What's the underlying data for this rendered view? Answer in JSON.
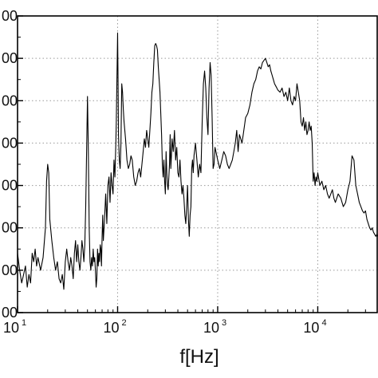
{
  "chart_data": {
    "type": "line",
    "xlabel": "f[Hz]",
    "xscale": "log",
    "xlim": [
      10,
      40000
    ],
    "ylim": [
      0,
      7
    ],
    "grid": true,
    "x_ticks": [
      {
        "value": 10,
        "base": "10",
        "exp": "1"
      },
      {
        "value": 100,
        "base": "10",
        "exp": "2"
      },
      {
        "value": 1000,
        "base": "10",
        "exp": "3"
      },
      {
        "value": 10000,
        "base": "10",
        "exp": "4"
      }
    ],
    "y_ticks": [
      {
        "value": 0,
        "label": "00"
      },
      {
        "value": 1,
        "label": "00"
      },
      {
        "value": 2,
        "label": "00"
      },
      {
        "value": 3,
        "label": "00"
      },
      {
        "value": 4,
        "label": "00"
      },
      {
        "value": 5,
        "label": "00"
      },
      {
        "value": 6,
        "label": "00"
      },
      {
        "value": 7,
        "label": "00"
      }
    ],
    "series": [
      {
        "color": "#000000",
        "points": [
          [
            10,
            1.4
          ],
          [
            10.5,
            1.0
          ],
          [
            11,
            0.7
          ],
          [
            11.5,
            0.9
          ],
          [
            12,
            1.1
          ],
          [
            12.5,
            0.6
          ],
          [
            13,
            0.9
          ],
          [
            13.5,
            0.7
          ],
          [
            14,
            1.4
          ],
          [
            14.5,
            1.2
          ],
          [
            15,
            1.5
          ],
          [
            15.5,
            1.1
          ],
          [
            16,
            1.3
          ],
          [
            17,
            1.0
          ],
          [
            18,
            1.3
          ],
          [
            19,
            2.0
          ],
          [
            19.5,
            3.1
          ],
          [
            20,
            3.5
          ],
          [
            20.5,
            3.3
          ],
          [
            21,
            2.2
          ],
          [
            22,
            1.7
          ],
          [
            23,
            1.3
          ],
          [
            24,
            1.0
          ],
          [
            25,
            1.2
          ],
          [
            26,
            0.8
          ],
          [
            27,
            0.7
          ],
          [
            28,
            0.9
          ],
          [
            29,
            0.55
          ],
          [
            30,
            1.2
          ],
          [
            31,
            1.5
          ],
          [
            32,
            1.2
          ],
          [
            33,
            1.0
          ],
          [
            34,
            1.3
          ],
          [
            35,
            1.1
          ],
          [
            36,
            0.8
          ],
          [
            37,
            1.4
          ],
          [
            38,
            1.7
          ],
          [
            39,
            1.2
          ],
          [
            40,
            1.6
          ],
          [
            41,
            1.2
          ],
          [
            42,
            1.0
          ],
          [
            43,
            1.3
          ],
          [
            44,
            1.7
          ],
          [
            45,
            1.5
          ],
          [
            46,
            1.2
          ],
          [
            47,
            1.6
          ],
          [
            48,
            2.5
          ],
          [
            49,
            3.8
          ],
          [
            50,
            5.1
          ],
          [
            51,
            3.8
          ],
          [
            52,
            2.0
          ],
          [
            53,
            1.2
          ],
          [
            54,
            1.0
          ],
          [
            55,
            1.3
          ],
          [
            56,
            1.1
          ],
          [
            57,
            1.5
          ],
          [
            58,
            1.2
          ],
          [
            59,
            1.3
          ],
          [
            60,
            1.0
          ],
          [
            61,
            0.6
          ],
          [
            62,
            0.8
          ],
          [
            63,
            1.5
          ],
          [
            64,
            1.1
          ],
          [
            65,
            1.4
          ],
          [
            66,
            1.2
          ],
          [
            67,
            1.6
          ],
          [
            68,
            1.5
          ],
          [
            69,
            1.1
          ],
          [
            70,
            1.8
          ],
          [
            71,
            2.3
          ],
          [
            72,
            1.7
          ],
          [
            74,
            2.2
          ],
          [
            76,
            2.8
          ],
          [
            78,
            2.1
          ],
          [
            80,
            3.0
          ],
          [
            82,
            3.2
          ],
          [
            84,
            2.6
          ],
          [
            86,
            3.3
          ],
          [
            88,
            3.0
          ],
          [
            90,
            2.8
          ],
          [
            92,
            3.6
          ],
          [
            94,
            3.2
          ],
          [
            96,
            4.0
          ],
          [
            97,
            4.5
          ],
          [
            98,
            5.2
          ],
          [
            99,
            5.9
          ],
          [
            100,
            6.6
          ],
          [
            101,
            5.5
          ],
          [
            102,
            4.2
          ],
          [
            104,
            3.6
          ],
          [
            106,
            3.4
          ],
          [
            108,
            4.0
          ],
          [
            110,
            5.4
          ],
          [
            112,
            5.2
          ],
          [
            114,
            4.8
          ],
          [
            116,
            4.5
          ],
          [
            120,
            4.1
          ],
          [
            124,
            3.6
          ],
          [
            128,
            3.4
          ],
          [
            132,
            3.5
          ],
          [
            136,
            3.7
          ],
          [
            140,
            3.6
          ],
          [
            145,
            3.2
          ],
          [
            150,
            3.0
          ],
          [
            155,
            3.1
          ],
          [
            160,
            3.3
          ],
          [
            165,
            3.4
          ],
          [
            170,
            3.2
          ],
          [
            175,
            3.5
          ],
          [
            180,
            3.8
          ],
          [
            185,
            4.1
          ],
          [
            190,
            3.9
          ],
          [
            195,
            4.3
          ],
          [
            200,
            4.1
          ],
          [
            205,
            3.9
          ],
          [
            210,
            4.3
          ],
          [
            215,
            4.7
          ],
          [
            220,
            5.2
          ],
          [
            225,
            5.4
          ],
          [
            230,
            5.9
          ],
          [
            235,
            6.3
          ],
          [
            240,
            6.35
          ],
          [
            245,
            6.3
          ],
          [
            250,
            6.2
          ],
          [
            255,
            5.8
          ],
          [
            260,
            5.5
          ],
          [
            265,
            5.2
          ],
          [
            270,
            4.7
          ],
          [
            275,
            4.2
          ],
          [
            280,
            3.5
          ],
          [
            285,
            3.2
          ],
          [
            290,
            3.6
          ],
          [
            295,
            3.1
          ],
          [
            300,
            2.8
          ],
          [
            305,
            3.8
          ],
          [
            310,
            3.3
          ],
          [
            315,
            3.0
          ],
          [
            320,
            2.9
          ],
          [
            325,
            3.2
          ],
          [
            330,
            3.5
          ],
          [
            335,
            4.2
          ],
          [
            340,
            3.4
          ],
          [
            345,
            3.7
          ],
          [
            350,
            4.1
          ],
          [
            360,
            3.8
          ],
          [
            370,
            4.3
          ],
          [
            380,
            3.6
          ],
          [
            390,
            3.9
          ],
          [
            400,
            3.3
          ],
          [
            410,
            3.2
          ],
          [
            420,
            3.6
          ],
          [
            430,
            3.1
          ],
          [
            440,
            2.8
          ],
          [
            450,
            3.0
          ],
          [
            460,
            2.7
          ],
          [
            470,
            2.3
          ],
          [
            480,
            2.1
          ],
          [
            490,
            2.5
          ],
          [
            500,
            3.0
          ],
          [
            510,
            2.2
          ],
          [
            520,
            1.8
          ],
          [
            530,
            2.3
          ],
          [
            540,
            2.5
          ],
          [
            550,
            3.4
          ],
          [
            560,
            3.6
          ],
          [
            570,
            3.3
          ],
          [
            580,
            3.7
          ],
          [
            600,
            4.0
          ],
          [
            620,
            3.6
          ],
          [
            640,
            3.2
          ],
          [
            660,
            3.5
          ],
          [
            680,
            3.3
          ],
          [
            700,
            4.5
          ],
          [
            720,
            5.4
          ],
          [
            740,
            5.7
          ],
          [
            760,
            5.3
          ],
          [
            780,
            4.6
          ],
          [
            800,
            4.2
          ],
          [
            820,
            5.3
          ],
          [
            840,
            5.9
          ],
          [
            860,
            5.6
          ],
          [
            880,
            4.6
          ],
          [
            900,
            3.4
          ],
          [
            920,
            3.5
          ],
          [
            940,
            3.9
          ],
          [
            960,
            3.8
          ],
          [
            980,
            3.7
          ],
          [
            1000,
            3.6
          ],
          [
            1050,
            3.4
          ],
          [
            1100,
            3.6
          ],
          [
            1150,
            3.8
          ],
          [
            1200,
            3.7
          ],
          [
            1250,
            3.5
          ],
          [
            1300,
            3.4
          ],
          [
            1350,
            3.5
          ],
          [
            1400,
            3.6
          ],
          [
            1450,
            3.8
          ],
          [
            1500,
            4.0
          ],
          [
            1550,
            4.3
          ],
          [
            1600,
            3.8
          ],
          [
            1650,
            4.2
          ],
          [
            1700,
            4.1
          ],
          [
            1750,
            4.0
          ],
          [
            1800,
            4.2
          ],
          [
            1850,
            4.4
          ],
          [
            1900,
            4.6
          ],
          [
            2000,
            4.7
          ],
          [
            2100,
            4.9
          ],
          [
            2200,
            5.2
          ],
          [
            2300,
            5.4
          ],
          [
            2400,
            5.5
          ],
          [
            2500,
            5.7
          ],
          [
            2600,
            5.8
          ],
          [
            2700,
            5.75
          ],
          [
            2800,
            5.9
          ],
          [
            2900,
            5.95
          ],
          [
            3000,
            6.0
          ],
          [
            3100,
            5.9
          ],
          [
            3200,
            5.8
          ],
          [
            3300,
            5.85
          ],
          [
            3400,
            5.7
          ],
          [
            3500,
            5.6
          ],
          [
            3600,
            5.5
          ],
          [
            3700,
            5.4
          ],
          [
            3800,
            5.35
          ],
          [
            3900,
            5.3
          ],
          [
            4000,
            5.25
          ],
          [
            4200,
            5.2
          ],
          [
            4400,
            5.3
          ],
          [
            4600,
            5.1
          ],
          [
            4800,
            5.2
          ],
          [
            5000,
            5.0
          ],
          [
            5200,
            5.3
          ],
          [
            5400,
            5.0
          ],
          [
            5600,
            4.9
          ],
          [
            5800,
            5.1
          ],
          [
            6000,
            5.0
          ],
          [
            6200,
            5.4
          ],
          [
            6400,
            5.2
          ],
          [
            6600,
            5.0
          ],
          [
            6800,
            4.5
          ],
          [
            7000,
            4.4
          ],
          [
            7200,
            4.6
          ],
          [
            7400,
            4.3
          ],
          [
            7600,
            4.5
          ],
          [
            7800,
            4.2
          ],
          [
            8000,
            4.3
          ],
          [
            8200,
            4.5
          ],
          [
            8400,
            4.3
          ],
          [
            8600,
            4.4
          ],
          [
            8800,
            4.0
          ],
          [
            9000,
            3.1
          ],
          [
            9200,
            3.3
          ],
          [
            9400,
            3.0
          ],
          [
            9600,
            3.2
          ],
          [
            9800,
            3.1
          ],
          [
            10000,
            3.3
          ],
          [
            10500,
            3.0
          ],
          [
            11000,
            3.1
          ],
          [
            11500,
            2.9
          ],
          [
            12000,
            3.0
          ],
          [
            12500,
            2.8
          ],
          [
            13000,
            2.7
          ],
          [
            13500,
            2.8
          ],
          [
            14000,
            2.9
          ],
          [
            14500,
            2.7
          ],
          [
            15000,
            2.6
          ],
          [
            16000,
            2.8
          ],
          [
            17000,
            2.7
          ],
          [
            18000,
            2.5
          ],
          [
            19000,
            2.6
          ],
          [
            20000,
            2.9
          ],
          [
            21000,
            3.1
          ],
          [
            22000,
            3.7
          ],
          [
            23000,
            3.6
          ],
          [
            24000,
            3.0
          ],
          [
            25000,
            2.8
          ],
          [
            26000,
            2.6
          ],
          [
            27000,
            2.5
          ],
          [
            28000,
            2.4
          ],
          [
            29000,
            2.35
          ],
          [
            30000,
            2.4
          ],
          [
            31000,
            2.2
          ],
          [
            32000,
            2.1
          ],
          [
            33000,
            2.0
          ],
          [
            34000,
            1.95
          ],
          [
            35000,
            2.0
          ],
          [
            36000,
            1.9
          ],
          [
            37000,
            1.85
          ],
          [
            38000,
            1.8
          ],
          [
            39000,
            1.85
          ],
          [
            40000,
            1.8
          ]
        ]
      }
    ]
  }
}
